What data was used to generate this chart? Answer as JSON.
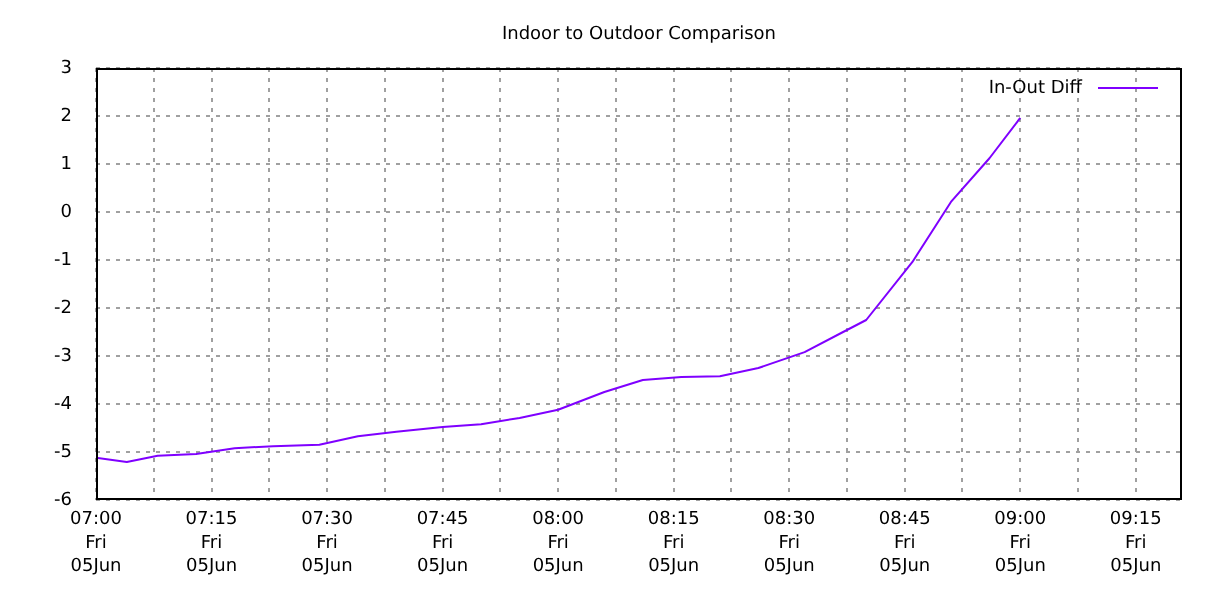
{
  "chart_data": {
    "type": "line",
    "title": "Indoor to Outdoor Comparison",
    "x": [
      "--06-05T07:00",
      "--06-05T07:04",
      "--06-05T07:08",
      "--06-05T07:13",
      "--06-05T07:18",
      "--06-05T07:23",
      "--06-05T07:29",
      "--06-05T07:34",
      "--06-05T07:39",
      "--06-05T07:45",
      "--06-05T07:50",
      "--06-05T07:55",
      "--06-05T08:00",
      "--06-05T08:06",
      "--06-05T08:11",
      "--06-05T08:16",
      "--06-05T08:21",
      "--06-05T08:26",
      "--06-05T08:32",
      "--06-05T08:37",
      "--06-05T08:40",
      "--06-05T08:46",
      "--06-05T08:51",
      "--06-05T08:56",
      "--06-05T09:00"
    ],
    "series": [
      {
        "name": "In-Out Diff",
        "color": "#7f00ff",
        "values": [
          -5.12,
          -5.21,
          -5.08,
          -5.04,
          -4.92,
          -4.88,
          -4.85,
          -4.67,
          -4.58,
          -4.48,
          -4.42,
          -4.29,
          -4.12,
          -3.75,
          -3.5,
          -3.44,
          -3.42,
          -3.25,
          -2.92,
          -2.5,
          -2.25,
          -1.04,
          0.21,
          1.12,
          1.96
        ]
      }
    ],
    "xlim": [
      "--06-05T07:00",
      "--06-05T09:21"
    ],
    "xticks": [
      {
        "value": "--06-05T07:00",
        "label": "07:00\nFri\n05Jun"
      },
      {
        "value": "--06-05T07:07:30",
        "label": null
      },
      {
        "value": "--06-05T07:15",
        "label": "07:15\nFri\n05Jun"
      },
      {
        "value": "--06-05T07:22:30",
        "label": null
      },
      {
        "value": "--06-05T07:30",
        "label": "07:30\nFri\n05Jun"
      },
      {
        "value": "--06-05T07:37:30",
        "label": null
      },
      {
        "value": "--06-05T07:45",
        "label": "07:45\nFri\n05Jun"
      },
      {
        "value": "--06-05T07:52:30",
        "label": null
      },
      {
        "value": "--06-05T08:00",
        "label": "08:00\nFri\n05Jun"
      },
      {
        "value": "--06-05T08:07:30",
        "label": null
      },
      {
        "value": "--06-05T08:15",
        "label": "08:15\nFri\n05Jun"
      },
      {
        "value": "--06-05T08:22:30",
        "label": null
      },
      {
        "value": "--06-05T08:30",
        "label": "08:30\nFri\n05Jun"
      },
      {
        "value": "--06-05T08:37:30",
        "label": null
      },
      {
        "value": "--06-05T08:45",
        "label": "08:45\nFri\n05Jun"
      },
      {
        "value": "--06-05T08:52:30",
        "label": null
      },
      {
        "value": "--06-05T09:00",
        "label": "09:00\nFri\n05Jun"
      },
      {
        "value": "--06-05T09:07:30",
        "label": null
      },
      {
        "value": "--06-05T09:15",
        "label": "09:15\nFri\n05Jun"
      }
    ],
    "ylim": [
      -6,
      3
    ],
    "yticks": [
      -6,
      -5,
      -4,
      -3,
      -2,
      -1,
      0,
      1,
      2,
      3
    ],
    "grid": true,
    "legend": "top right",
    "marker": "none",
    "line_style": "solid"
  }
}
